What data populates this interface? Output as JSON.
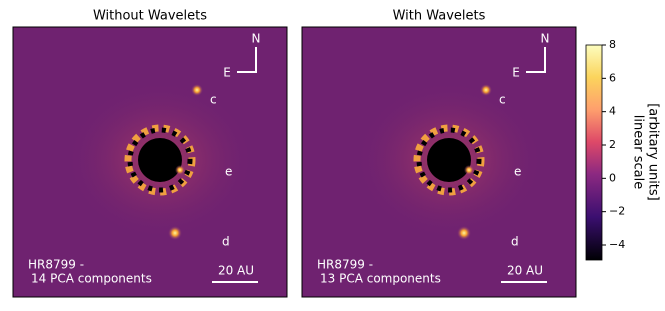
{
  "chart_data": {
    "type": "image",
    "panels": [
      {
        "title": "Without Wavelets",
        "north": "N",
        "east": "E",
        "planets": [
          "c",
          "e",
          "d"
        ],
        "target": "HR8799 -",
        "components": "14 PCA components",
        "scale": "20 AU"
      },
      {
        "title": "With Wavelets",
        "north": "N",
        "east": "E",
        "planets": [
          "c",
          "e",
          "d"
        ],
        "target": "HR8799 -",
        "components": "13 PCA components",
        "scale": "20 AU"
      }
    ],
    "colorbar": {
      "label": [
        "linear scale",
        "[arbitary units]"
      ],
      "ylim": [
        -4.9,
        8
      ],
      "yticks": [
        {
          "value": -4,
          "label": "−4"
        },
        {
          "value": -2,
          "label": "−2"
        },
        0,
        2,
        4,
        6,
        8
      ]
    }
  }
}
